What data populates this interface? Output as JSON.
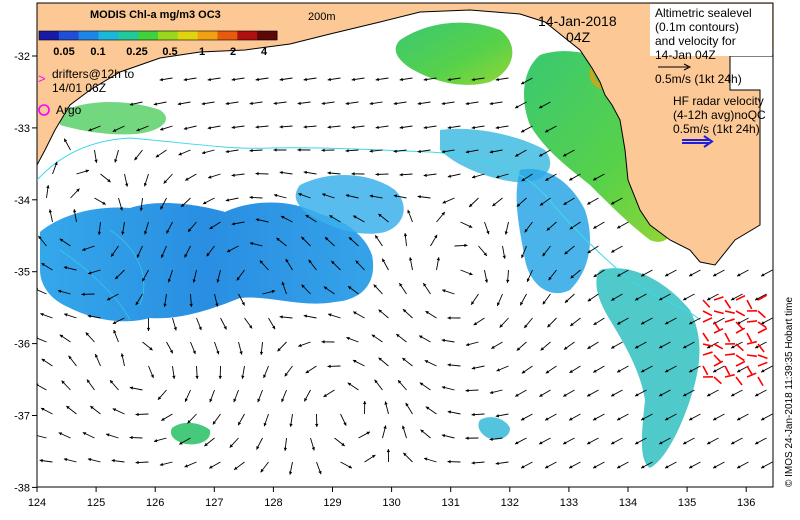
{
  "colorbar": {
    "title": "MODIS Chl-a mg/m3 OC3",
    "ticks": [
      "0.05",
      "0.1",
      "0.25",
      "0.5",
      "1",
      "2",
      "4"
    ],
    "colors": [
      "#1a1aa8",
      "#1f4fd8",
      "#1c86e8",
      "#19b7d8",
      "#20c99a",
      "#3fd23c",
      "#9ad81b",
      "#e0d40e",
      "#f0a010",
      "#e85a0c",
      "#b01010",
      "#5a0808"
    ]
  },
  "labels": {
    "isobath": "200m",
    "date": "14-Jan-2018",
    "hour": "04Z",
    "drifters_line1": "drifters@12h to",
    "drifters_line2": "14/01 06Z",
    "argo": "Argo",
    "alt_line1": "Altimetric sealevel",
    "alt_line2": "(0.1m contours)",
    "alt_line3": "and velocity for",
    "alt_line4": "14-Jan 04Z",
    "alt_scale": "0.5m/s (1kt 24h)",
    "hf_line1": "HF radar velocity",
    "hf_line2": "(4-12h avg)noQC",
    "hf_scale": "0.5m/s (1kt 24h)",
    "credit": "© IMOS 24-Jan-2018 11:39:35 Hobart time"
  },
  "axes": {
    "x_ticks": [
      "124",
      "125",
      "126",
      "127",
      "128",
      "129",
      "130",
      "131",
      "132",
      "133",
      "134",
      "135",
      "136"
    ],
    "y_ticks": [
      "-32",
      "-33",
      "-34",
      "-35",
      "-36",
      "-37",
      "-38"
    ]
  },
  "style": {
    "land": "#fbc896",
    "coast": "#000000",
    "isobath": "#3cd8e8",
    "drifter": "#ff00ff",
    "argo": "#ff00ff",
    "hf_arrow": "#ff0000",
    "hf_legend_arrow": "#1f1fd8"
  }
}
